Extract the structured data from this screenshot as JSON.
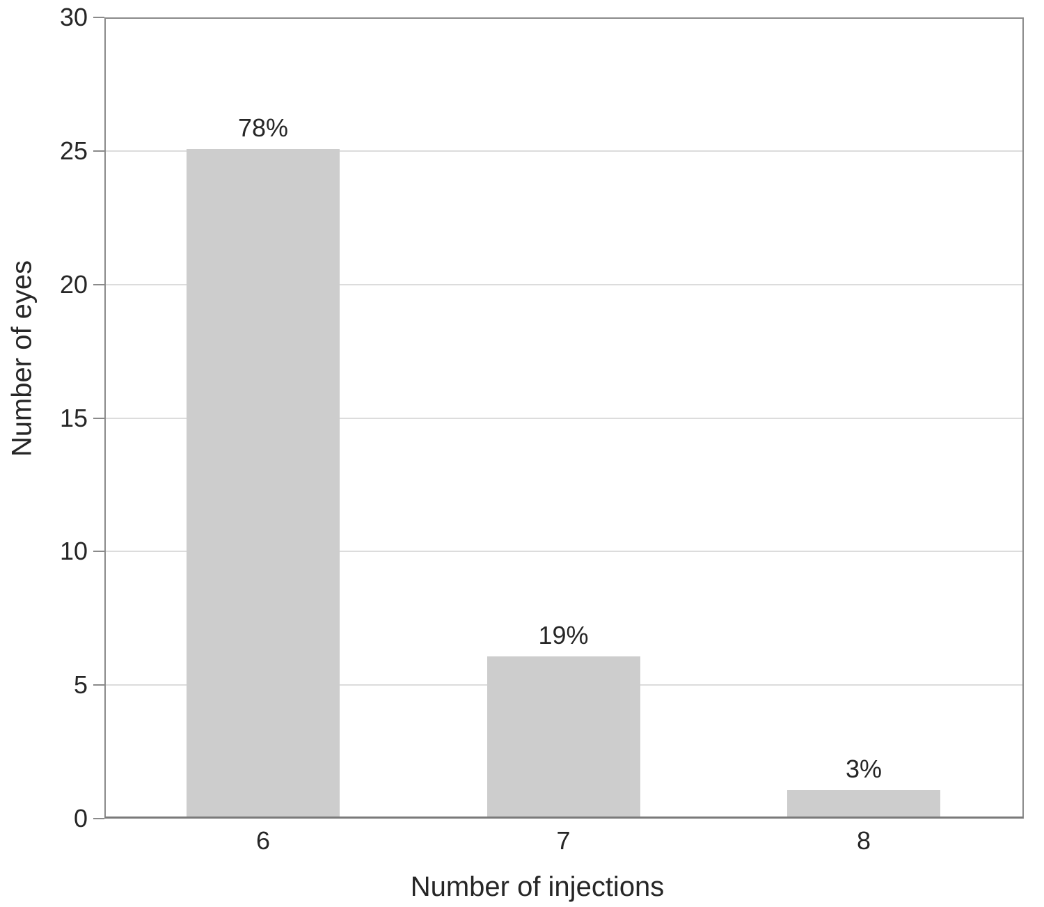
{
  "chart_data": {
    "type": "bar",
    "categories": [
      "6",
      "7",
      "8"
    ],
    "values": [
      25,
      6,
      1
    ],
    "bar_labels": [
      "78%",
      "19%",
      "3%"
    ],
    "title": "",
    "xlabel": "Number of injections",
    "ylabel": "Number of eyes",
    "ylim": [
      0,
      30
    ],
    "yticks": [
      0,
      5,
      10,
      15,
      20,
      25,
      30
    ],
    "grid": true,
    "legend": "none",
    "colors": {
      "bar_fill": "#cdcdcd",
      "gridline": "#dcdcdc",
      "frame": "#8a8a8a",
      "axis": "#7a7a7a",
      "text": "#262626"
    }
  }
}
